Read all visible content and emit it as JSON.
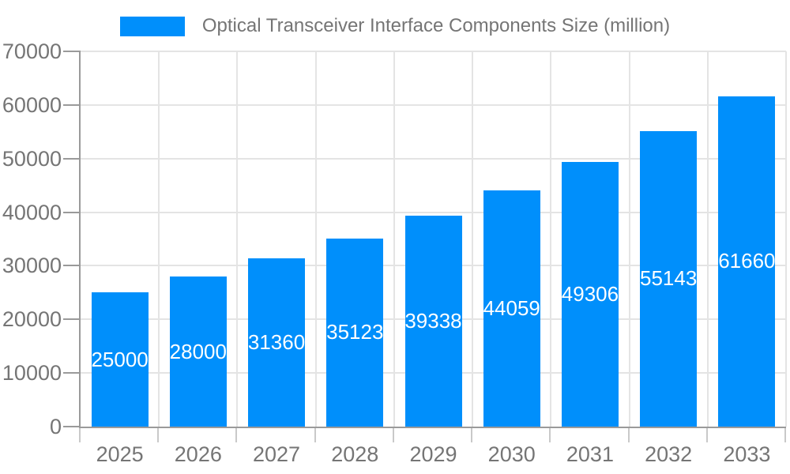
{
  "legend": {
    "label": "Optical Transceiver Interface Components Size (million)"
  },
  "chart_data": {
    "type": "bar",
    "title": "",
    "series_name": "Optical Transceiver Interface Components Size (million)",
    "categories": [
      "2025",
      "2026",
      "2027",
      "2028",
      "2029",
      "2030",
      "2031",
      "2032",
      "2033"
    ],
    "values": [
      25000,
      28000,
      31360,
      35123,
      39338,
      44059,
      49306,
      55143,
      61660
    ],
    "value_labels": [
      "25000",
      "28000",
      "31360",
      "35123",
      "39338",
      "44059",
      "49306",
      "55143",
      "61660"
    ],
    "xlabel": "",
    "ylabel": "",
    "ylim": [
      0,
      70000
    ],
    "ytick_step": 10000,
    "ytick_labels": [
      "0",
      "10000",
      "20000",
      "30000",
      "40000",
      "50000",
      "60000",
      "70000"
    ],
    "grid": true,
    "legend_position": "top",
    "value_label_position": "inside-center",
    "colors": {
      "bar": "#008FFB",
      "axis_label": "#757575",
      "value_label": "#ffffff",
      "gridline": "#e4e4e4",
      "axis_line": "#9a9a9a",
      "x_tick": "#c9c9c9"
    }
  }
}
